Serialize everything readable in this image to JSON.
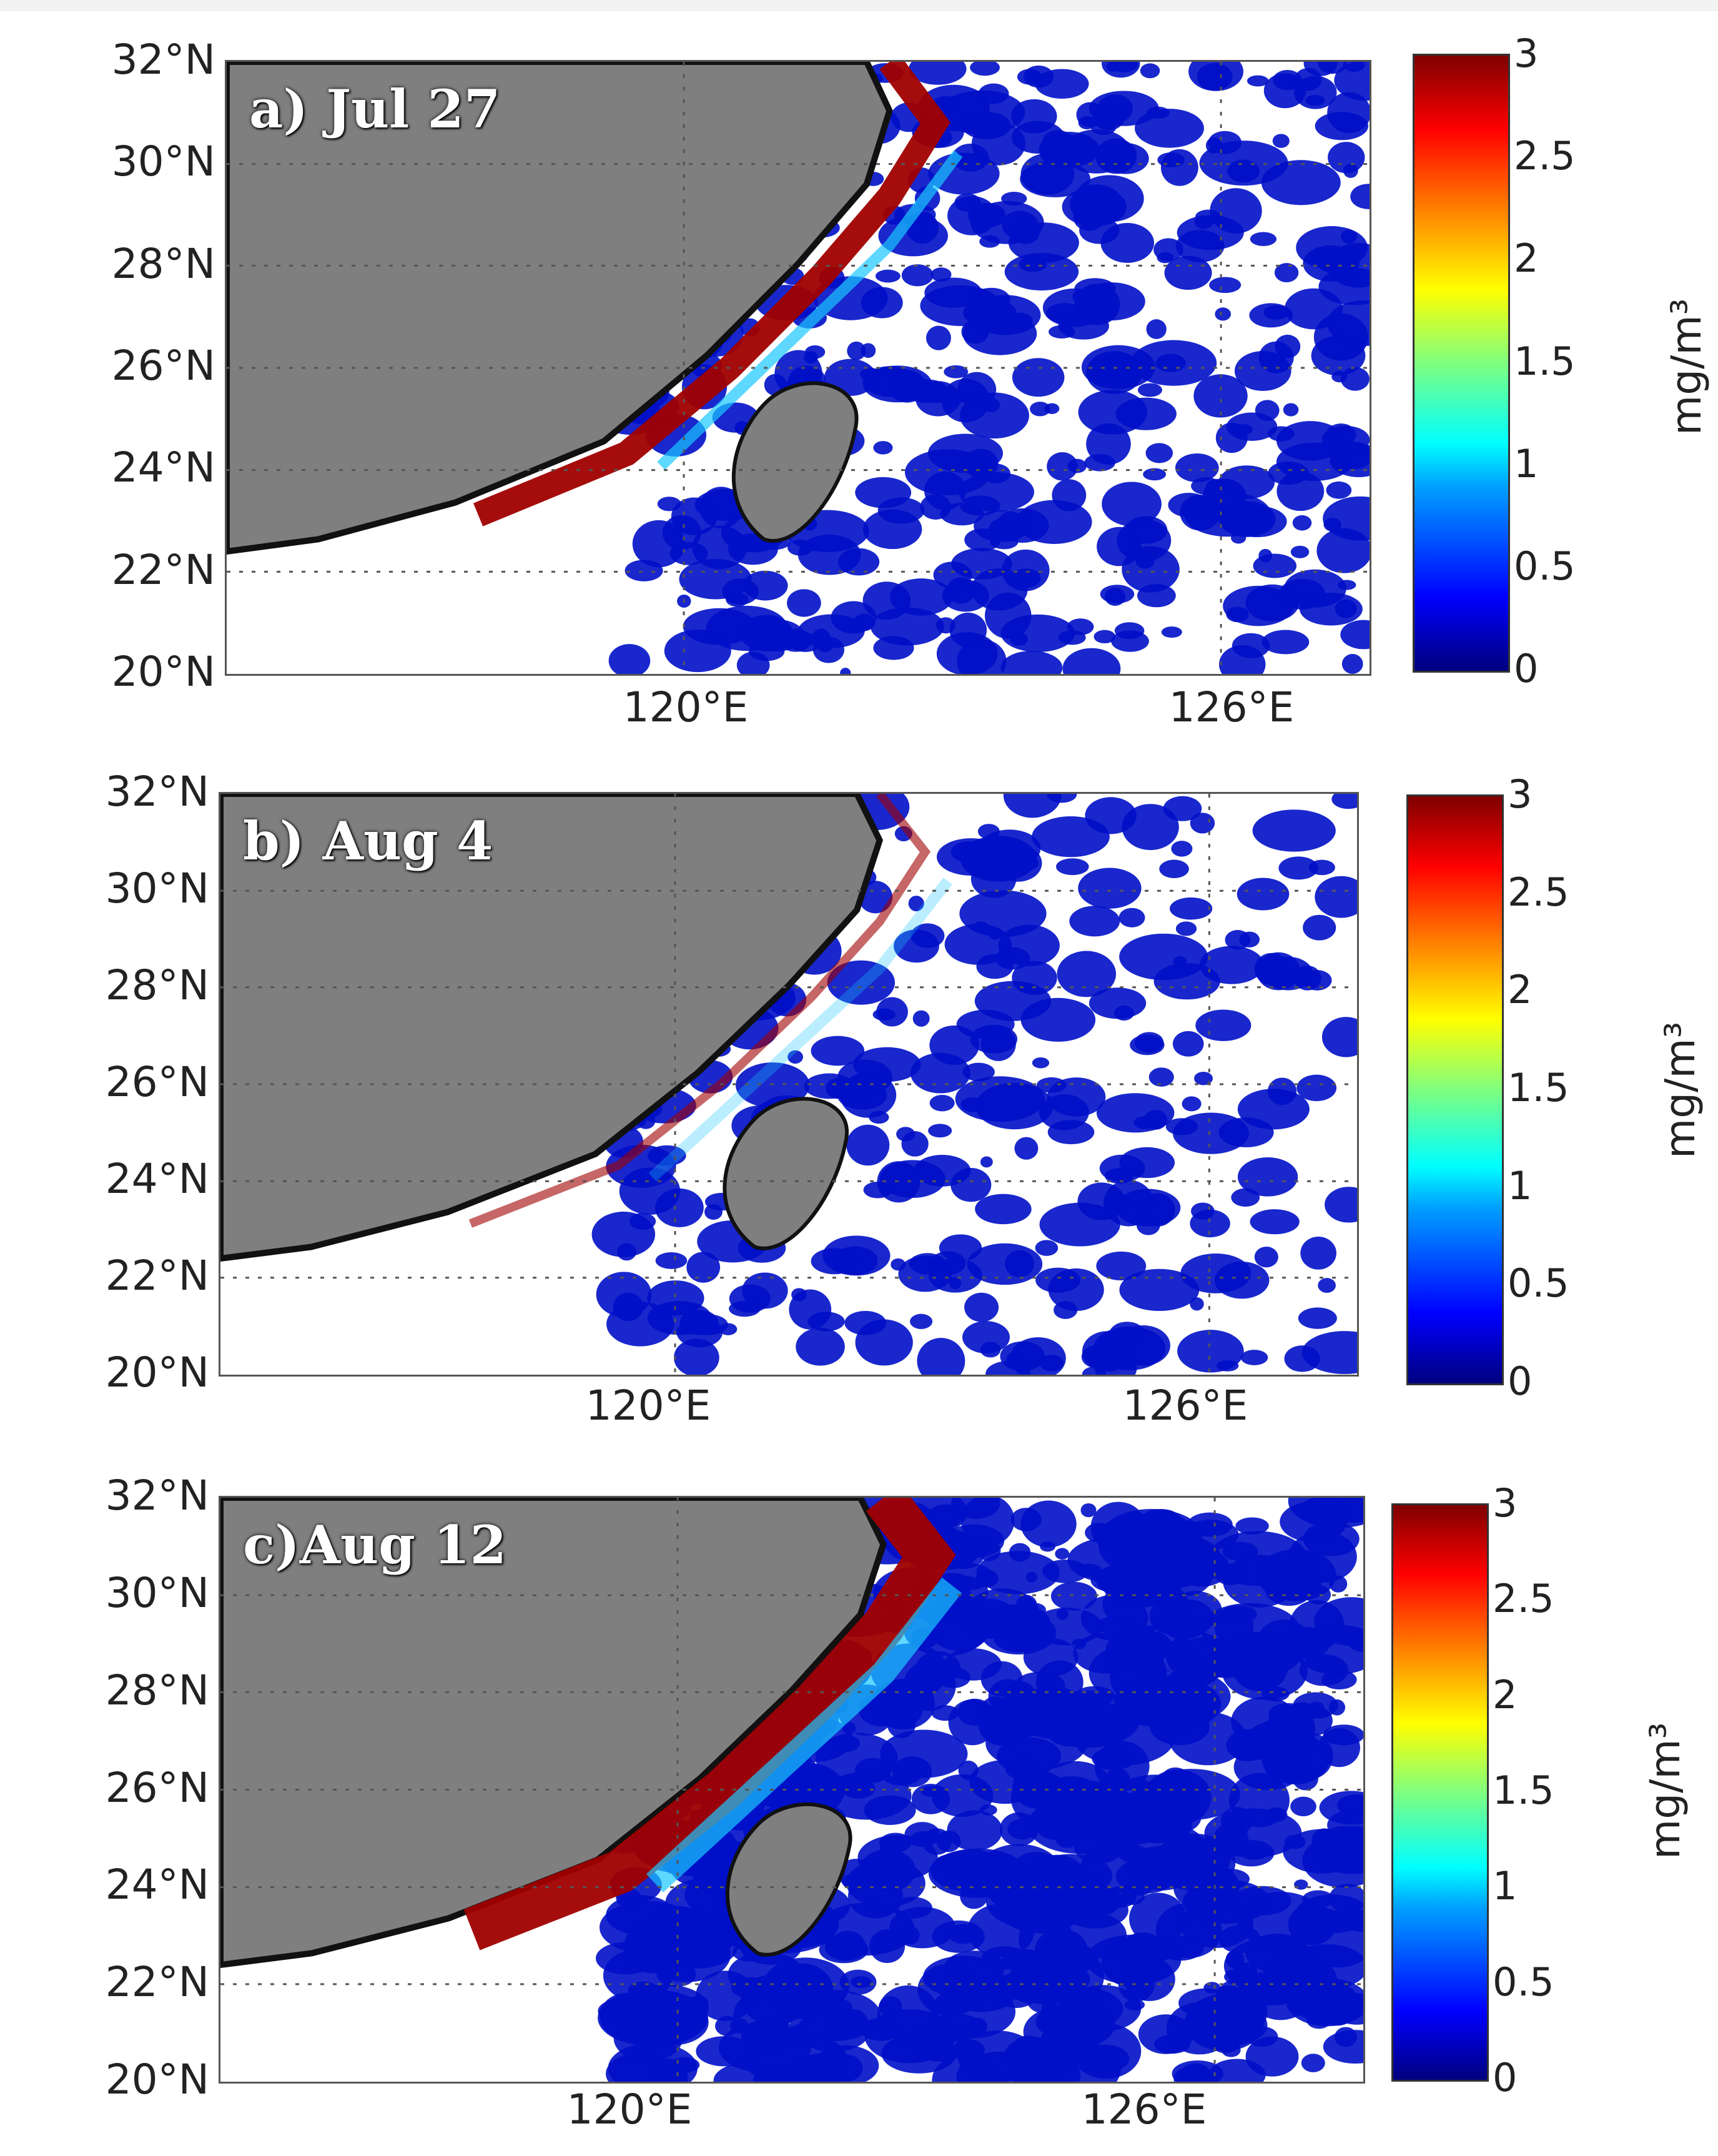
{
  "figure": {
    "panels": [
      {
        "label": "a) Jul 27",
        "date": "Jul 27"
      },
      {
        "label": "b) Aug 4",
        "date": "Aug 4"
      },
      {
        "label": "c)Aug 12",
        "date": "Aug 12"
      }
    ],
    "lat_labels": [
      "32°N",
      "30°N",
      "28°N",
      "26°N",
      "24°N",
      "22°N",
      "20°N"
    ],
    "lon_labels": [
      "120°E",
      "126°E"
    ],
    "colorbar": {
      "ticks": [
        "3",
        "2.5",
        "2",
        "1.5",
        "1",
        "0.5",
        "0"
      ],
      "unit": "mg/m³",
      "range": [
        0,
        3
      ],
      "colormap": "jet"
    },
    "colors": {
      "land": "#7f7f7f",
      "coast": "#111111",
      "low": "#0010c8",
      "high": "#a00000",
      "mid": "#19c8ff"
    }
  }
}
